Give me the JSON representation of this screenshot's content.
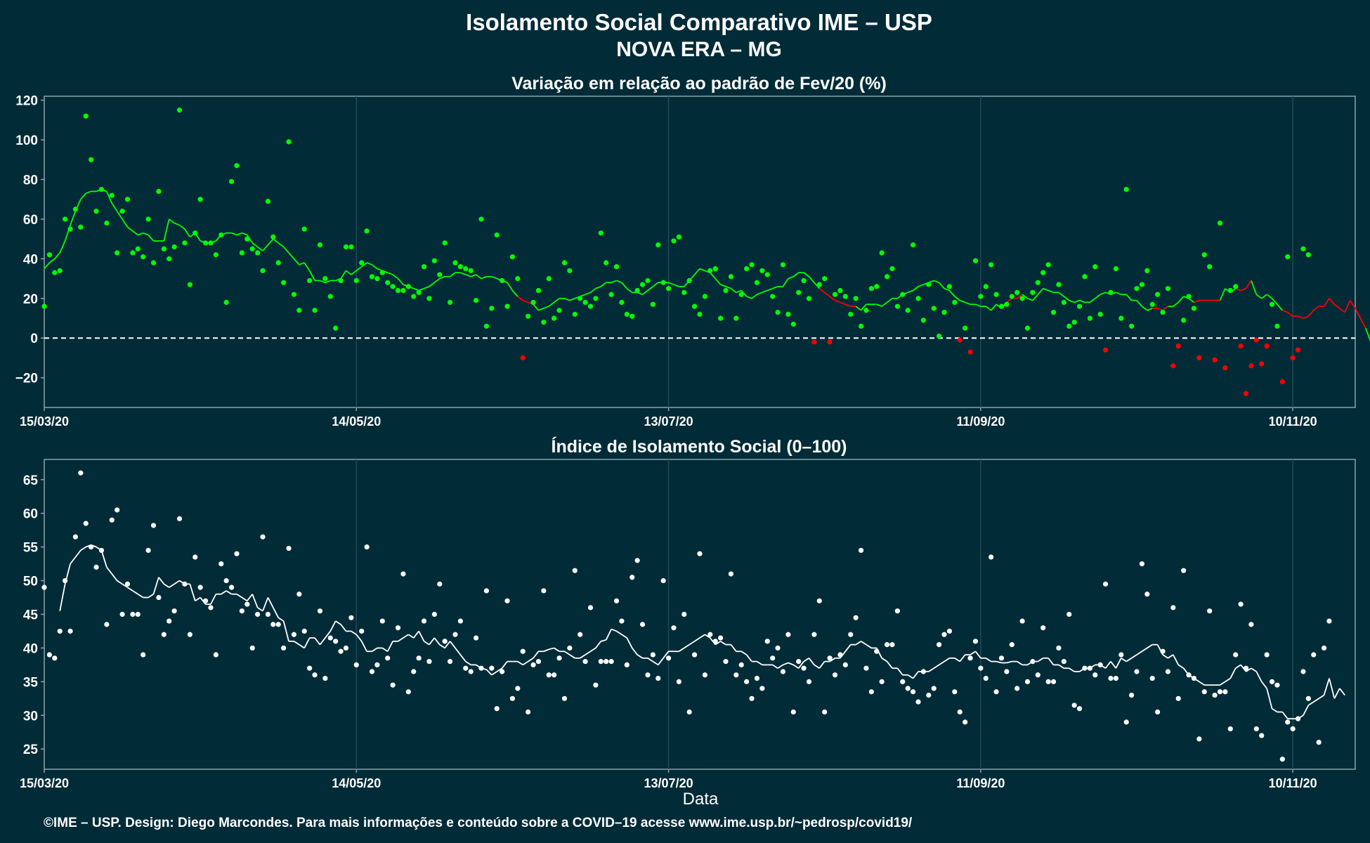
{
  "title_line1": "Isolamento Social Comparativo IME – USP",
  "title_line2": "NOVA ERA – MG",
  "xlabel": "Data",
  "footer": "©IME – USP. Design: Diego Marcondes. Para mais informações e conteúdo sobre a COVID–19 acesse www.ime.usp.br/~pedrosp/covid19/",
  "colors": {
    "background": "#022b38",
    "positive": "#00ff00",
    "negative": "#ff0000",
    "index": "#ffffff",
    "grid": "#1d4a57",
    "frame": "#8aa3ab"
  },
  "chart_data": [
    {
      "type": "scatter",
      "title": "Variação em relação ao padrão de Fev/20 (%)",
      "x_range": [
        "15/03/20",
        "22/11/20"
      ],
      "x_ticks": [
        "15/03/20",
        "14/05/20",
        "13/07/20",
        "11/09/20",
        "10/11/20"
      ],
      "ylim": [
        -35,
        122
      ],
      "y_ticks": [
        "−20",
        "0",
        "20",
        "40",
        "60",
        "80",
        "100",
        "120"
      ],
      "reference_line": 0,
      "grid": true,
      "color_rule": "green when ≥ 0, red when < 0",
      "points": [
        16,
        42,
        33,
        34,
        60,
        55,
        65,
        56,
        112,
        90,
        64,
        75,
        58,
        72,
        43,
        64,
        70,
        43,
        45,
        41,
        60,
        38,
        74,
        45,
        40,
        46,
        115,
        48,
        27,
        53,
        70,
        48,
        48,
        42,
        52,
        18,
        79,
        87,
        43,
        50,
        45,
        43,
        34,
        69,
        51,
        38,
        28,
        99,
        22,
        14,
        55,
        29,
        14,
        47,
        30,
        21,
        5,
        29,
        46,
        46,
        29,
        38,
        54,
        31,
        30,
        33,
        28,
        26,
        24,
        24,
        26,
        21,
        23,
        36,
        20,
        39,
        32,
        48,
        18,
        38,
        36,
        35,
        34,
        19,
        60,
        6,
        15,
        52,
        29,
        16,
        41,
        30,
        -10,
        11,
        18,
        24,
        8,
        30,
        10,
        14,
        38,
        34,
        12,
        20,
        18,
        16,
        20,
        53,
        38,
        22,
        36,
        18,
        12,
        11,
        24,
        27,
        29,
        17,
        47,
        28,
        25,
        49,
        51,
        23,
        29,
        16,
        12,
        21,
        34,
        35,
        10,
        24,
        31,
        10,
        22,
        35,
        37,
        28,
        34,
        32,
        21,
        13,
        37,
        12,
        7,
        23,
        29,
        20,
        -2,
        27,
        30,
        -2,
        22,
        24,
        21,
        12,
        20,
        6,
        14,
        25,
        26,
        43,
        31,
        35,
        16,
        22,
        14,
        47,
        20,
        9,
        27,
        15,
        1,
        13,
        26,
        18,
        -1,
        5,
        -7,
        39,
        21,
        26,
        37,
        22,
        16,
        17,
        21,
        23,
        20,
        5,
        23,
        28,
        33,
        37,
        13,
        27,
        18,
        6,
        8,
        16,
        31,
        10,
        36,
        12,
        -6,
        23,
        35,
        10,
        75,
        6,
        25,
        27,
        34,
        17,
        22,
        13,
        25,
        -14,
        -4,
        9,
        21,
        15,
        -10,
        42,
        36,
        -11,
        58,
        -15,
        24,
        26,
        -4,
        -28,
        -14,
        -1,
        -13,
        -4,
        17,
        6,
        -22,
        41,
        -10,
        -6,
        45,
        42
      ],
      "moving_average": [
        35,
        38,
        40,
        43,
        49,
        57,
        64,
        70,
        73,
        74,
        74,
        75,
        74,
        68,
        64,
        60,
        56,
        54,
        52,
        53,
        52,
        49,
        49,
        49,
        60,
        58,
        57,
        55,
        51,
        53,
        49,
        48,
        48,
        49,
        52,
        53,
        53,
        52,
        53,
        52,
        48,
        46,
        44,
        47,
        50,
        48,
        46,
        43,
        40,
        37,
        38,
        34,
        29,
        29,
        28,
        29,
        29,
        30,
        34,
        32,
        34,
        36,
        38,
        37,
        35,
        34,
        33,
        32,
        30,
        27,
        26,
        25,
        24,
        25,
        26,
        28,
        30,
        31,
        31,
        33,
        33,
        32,
        31,
        32,
        30,
        31,
        31,
        30,
        29,
        28,
        24,
        21,
        19,
        18,
        17,
        14,
        15,
        16,
        18,
        20,
        20,
        19,
        20,
        21,
        22,
        23,
        25,
        26,
        28,
        28,
        29,
        28,
        25,
        23,
        23,
        22,
        24,
        26,
        28,
        28,
        28,
        27,
        26,
        26,
        29,
        32,
        35,
        34,
        33,
        30,
        27,
        26,
        25,
        23,
        24,
        21,
        20,
        22,
        23,
        24,
        25,
        26,
        26,
        30,
        31,
        33,
        33,
        31,
        28,
        25,
        23,
        21,
        19,
        18,
        17,
        16,
        16,
        14,
        17,
        17,
        17,
        16,
        18,
        20,
        20,
        22,
        23,
        24,
        26,
        27,
        28,
        29,
        28,
        25,
        24,
        21,
        19,
        18,
        17,
        17,
        16,
        16,
        14,
        17,
        15,
        18,
        20,
        20,
        22,
        20,
        19,
        22,
        25,
        24,
        23,
        23,
        21,
        19,
        18,
        19,
        18,
        18,
        20,
        22,
        23,
        22,
        23,
        22,
        22,
        19,
        19,
        16,
        14,
        15,
        15,
        14,
        16,
        16,
        18,
        21,
        20,
        18,
        19,
        19,
        19,
        19,
        19,
        25,
        23,
        25,
        24,
        25,
        29,
        22,
        20,
        22,
        20,
        17,
        14,
        13,
        11,
        11,
        10,
        11,
        14,
        16,
        16,
        20,
        17,
        15,
        13,
        19,
        15,
        10,
        5,
        -2,
        -2,
        -2,
        -5,
        -6,
        -6,
        -5,
        0,
        3,
        3,
        6,
        11,
        14
      ]
    },
    {
      "type": "scatter",
      "title": "Índice de Isolamento Social (0–100)",
      "x_range": [
        "15/03/20",
        "22/11/20"
      ],
      "x_ticks": [
        "15/03/20",
        "14/05/20",
        "13/07/20",
        "11/09/20",
        "10/11/20"
      ],
      "ylim": [
        22,
        68
      ],
      "y_ticks": [
        "25",
        "30",
        "35",
        "40",
        "45",
        "50",
        "55",
        "60",
        "65"
      ],
      "grid": true,
      "points": [
        49,
        39,
        38.5,
        42.5,
        50,
        42.5,
        56.5,
        66,
        58.5,
        55,
        52,
        54.5,
        43.5,
        59,
        60.5,
        45,
        49.5,
        45,
        45,
        39,
        54.5,
        58.2,
        47.5,
        42,
        44,
        45.5,
        59.2,
        49.5,
        42,
        53.5,
        49,
        47,
        46,
        39,
        52.5,
        50,
        49,
        54,
        45.5,
        46.5,
        40,
        45,
        56.5,
        45,
        43.5,
        43.5,
        40,
        54.8,
        42,
        48,
        42.5,
        37,
        36,
        45.5,
        35.5,
        41.5,
        41,
        39.5,
        40,
        44.5,
        37.5,
        42.5,
        55,
        36.5,
        37.5,
        44,
        38.5,
        34.5,
        43,
        51,
        33.5,
        36.5,
        38.5,
        44,
        38,
        45,
        49.5,
        41,
        38,
        42,
        44,
        37,
        36.5,
        41.5,
        37,
        48.5,
        37,
        31,
        36.5,
        47,
        32.5,
        34,
        39.5,
        30.5,
        37.5,
        38,
        48.5,
        36,
        36,
        38.5,
        32.5,
        40,
        51.5,
        42,
        38,
        46,
        34.5,
        38,
        38,
        38,
        47,
        44,
        37.5,
        50.5,
        53,
        43.5,
        36,
        39,
        35.5,
        50,
        38.5,
        43,
        35,
        45,
        30.5,
        39,
        54,
        36,
        42,
        41,
        41.5,
        38,
        51,
        36,
        37.5,
        35,
        32.5,
        35.5,
        34,
        41,
        38.5,
        40,
        36.5,
        42,
        30.5,
        38,
        37,
        35,
        42,
        47,
        30.5,
        38.5,
        36,
        39,
        37.5,
        42,
        44.5,
        54.5,
        37,
        33.5,
        39.5,
        35,
        40.5,
        40.5,
        45.5,
        35,
        34,
        33.5,
        32,
        36.5,
        33,
        34,
        40.5,
        42,
        42.5,
        33.5,
        30.5,
        29,
        38.5,
        41,
        37,
        35.5,
        53.5,
        33.5,
        38.5,
        36.5,
        40.5,
        34,
        44,
        35,
        38,
        36,
        43,
        35,
        35,
        40,
        38,
        45,
        31.5,
        31,
        37,
        37,
        36,
        37.5,
        49.5,
        35.5,
        35.5,
        39,
        29,
        33,
        36.5,
        52.5,
        48,
        35.5,
        30.5,
        39.5,
        36.5,
        46,
        32.5,
        51.5,
        36,
        35.5,
        26.5,
        33.5,
        45.5,
        33,
        33.5,
        33.5,
        28,
        39,
        46.5,
        37,
        43.5,
        28,
        27,
        39,
        35,
        34.5,
        23.5,
        29,
        28,
        29.5,
        36.5,
        32.5,
        39,
        26,
        40,
        44
      ],
      "moving_average": [
        45.5,
        49.5,
        52.5,
        53.5,
        54.5,
        55,
        55.3,
        55,
        54.5,
        52,
        51,
        50,
        49.5,
        49,
        48.5,
        48,
        47.5,
        47.5,
        48,
        50.5,
        49.5,
        49,
        49.5,
        50,
        49.5,
        49.5,
        47,
        47.5,
        46.5,
        46.5,
        48,
        48,
        48.5,
        48,
        48,
        47.5,
        47,
        48,
        46,
        45.5,
        47.5,
        46,
        44.5,
        44,
        41,
        41,
        40.5,
        40,
        41.5,
        41.5,
        40.5,
        41.5,
        42.5,
        44,
        43.5,
        42.5,
        42.5,
        42,
        41,
        39.5,
        39.5,
        40,
        40,
        39.5,
        41,
        41,
        41.5,
        42,
        41.5,
        42.5,
        41,
        40.5,
        41.5,
        40.5,
        40,
        41,
        40,
        39,
        38,
        37.5,
        37.5,
        37,
        36.8,
        36,
        36.5,
        37,
        38,
        38,
        38,
        37.5,
        38,
        38.5,
        39.5,
        39.5,
        39.8,
        40,
        39.5,
        39.5,
        39,
        38.5,
        38.5,
        39,
        39.5,
        40,
        41,
        41.2,
        42.8,
        42.5,
        42,
        41.5,
        40,
        39,
        38.5,
        38.5,
        38,
        37.5,
        38.5,
        39.5,
        39.5,
        39.5,
        40,
        40.5,
        41,
        41.5,
        42,
        41.5,
        40.5,
        41,
        40.5,
        40.5,
        39.5,
        39.5,
        39,
        38,
        38,
        37.5,
        37.5,
        37.5,
        37,
        37.5,
        37.8,
        37.5,
        37,
        38,
        38.5,
        37.5,
        37,
        38,
        38,
        38.5,
        38.5,
        39.5,
        40.5,
        40.5,
        41,
        40.5,
        40,
        40,
        38.5,
        38,
        37,
        37,
        36,
        36,
        35.5,
        36.5,
        36.5,
        36.5,
        37,
        37.5,
        38,
        38.5,
        38.5,
        38,
        39,
        39,
        39.5,
        38.5,
        38.5,
        38,
        38,
        37.8,
        37.8,
        38,
        38,
        37.5,
        37.5,
        38,
        38,
        38.5,
        38.5,
        37.5,
        37.5,
        37,
        37,
        36.5,
        36.5,
        37,
        37,
        37.5,
        37.5,
        37,
        38,
        37,
        38.5,
        38,
        38.5,
        39,
        39.5,
        40,
        40.5,
        40.5,
        39,
        38.5,
        39,
        37.5,
        37,
        36,
        35.5,
        35,
        34.5,
        34.5,
        34.5,
        34.5,
        35,
        35.5,
        37,
        37.5,
        36.5,
        37,
        36.5,
        35,
        34,
        31,
        30.5,
        30.5,
        29.5,
        29.5,
        29.5,
        30,
        31.5,
        32,
        32.5,
        33,
        35.5,
        32.5,
        34,
        33
      ]
    }
  ]
}
